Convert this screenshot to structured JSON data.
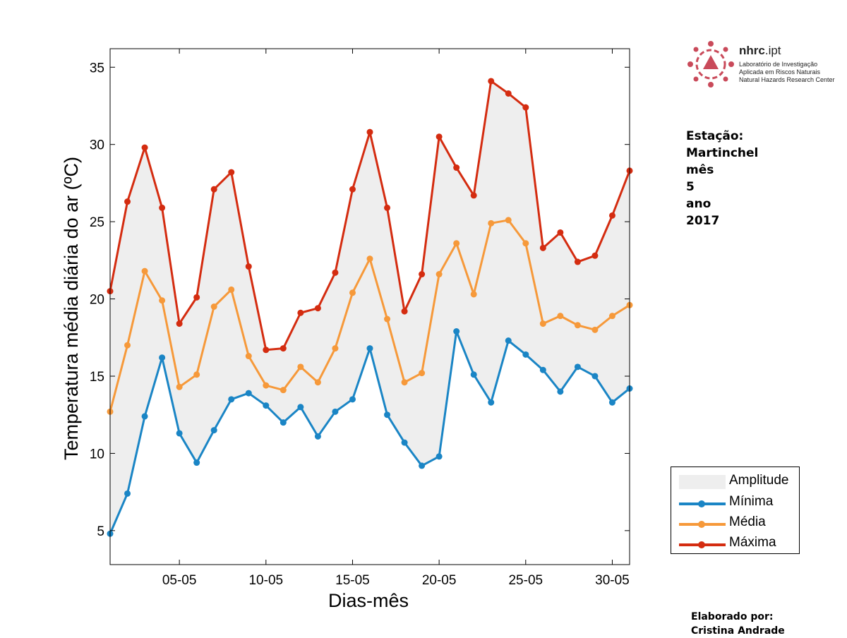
{
  "chart_data": {
    "type": "line",
    "xlabel": "Dias-mês",
    "ylabel": "Temperatura média diária do ar (ºC)",
    "x": [
      1,
      2,
      3,
      4,
      5,
      6,
      7,
      8,
      9,
      10,
      11,
      12,
      13,
      14,
      15,
      16,
      17,
      18,
      19,
      20,
      21,
      22,
      23,
      24,
      25,
      26,
      27,
      28,
      29,
      30,
      31
    ],
    "xlim": [
      1,
      31
    ],
    "ylim": [
      2.8,
      36.2
    ],
    "yticks": [
      5,
      10,
      15,
      20,
      25,
      30,
      35
    ],
    "xticks": [
      {
        "x": 5,
        "label": "05-05"
      },
      {
        "x": 10,
        "label": "10-05"
      },
      {
        "x": 15,
        "label": "15-05"
      },
      {
        "x": 20,
        "label": "20-05"
      },
      {
        "x": 25,
        "label": "25-05"
      },
      {
        "x": 30,
        "label": "30-05"
      }
    ],
    "area": {
      "name": "Amplitude",
      "color": "#eeeeee"
    },
    "series": [
      {
        "name": "Mínima",
        "color": "#1a85c5",
        "values": [
          4.8,
          7.4,
          12.4,
          16.2,
          11.3,
          9.4,
          11.5,
          13.5,
          13.9,
          13.1,
          12.0,
          13.0,
          11.1,
          12.7,
          13.5,
          16.8,
          12.5,
          10.7,
          9.2,
          9.8,
          17.9,
          15.1,
          13.3,
          17.3,
          16.4,
          15.4,
          14.0,
          15.6,
          15.0,
          13.3,
          14.2
        ]
      },
      {
        "name": "Média",
        "color": "#f6993a",
        "values": [
          12.7,
          17.0,
          21.8,
          19.9,
          14.3,
          15.1,
          19.5,
          20.6,
          16.3,
          14.4,
          14.1,
          15.6,
          14.6,
          16.8,
          20.4,
          22.6,
          18.7,
          14.6,
          15.2,
          21.6,
          23.6,
          20.3,
          24.9,
          25.1,
          23.6,
          18.4,
          18.9,
          18.3,
          18.0,
          18.9,
          19.6
        ]
      },
      {
        "name": "Máxima",
        "color": "#d42c10",
        "values": [
          20.5,
          26.3,
          29.8,
          25.9,
          18.4,
          20.1,
          27.1,
          28.2,
          22.1,
          16.7,
          16.8,
          19.1,
          19.4,
          21.7,
          27.1,
          30.8,
          25.9,
          19.2,
          21.6,
          30.5,
          28.5,
          26.7,
          34.1,
          33.3,
          32.4,
          23.3,
          24.3,
          22.4,
          22.8,
          25.4,
          28.3
        ]
      }
    ]
  },
  "station": {
    "lines": [
      "Estação:",
      "Martinchel",
      "mês",
      "5",
      "ano",
      "2017"
    ]
  },
  "logo": {
    "title_bold": "nhrc",
    "title_rest": ".ipt",
    "line1": "Laboratório de Investigação",
    "line2": "Aplicada em Riscos Naturais",
    "line3": "Natural Hazards Research Center",
    "color": "#c94a5a"
  },
  "author": {
    "line1": "Elaborado por:",
    "line2": "Cristina Andrade"
  }
}
